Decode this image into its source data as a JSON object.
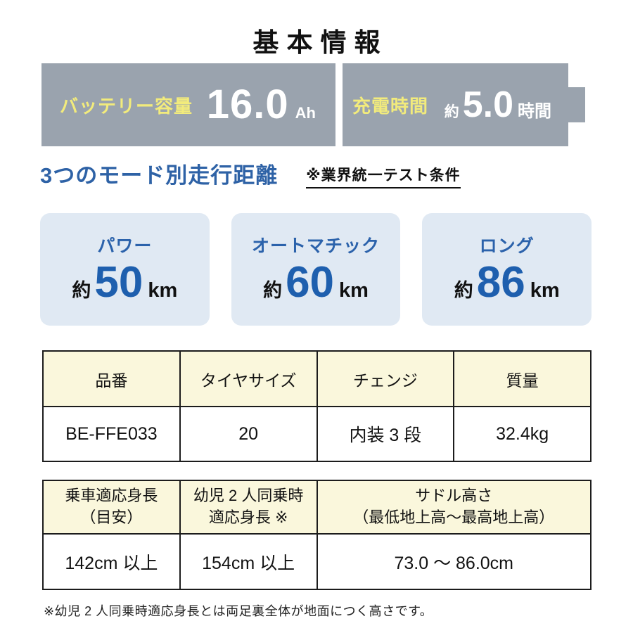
{
  "title": "基本情報",
  "banners": {
    "battery": {
      "label": "バッテリー容量",
      "value": "16.0",
      "unit": "Ah"
    },
    "charge": {
      "label": "充電時間",
      "approx": "約",
      "value": "5.0",
      "unit": "時間"
    }
  },
  "modes": {
    "heading": "3つのモード別走行距離",
    "note": "※業界統一テスト条件",
    "items": [
      {
        "label": "パワー",
        "approx": "約",
        "value": "50",
        "unit": "km"
      },
      {
        "label": "オートマチック",
        "approx": "約",
        "value": "60",
        "unit": "km"
      },
      {
        "label": "ロング",
        "approx": "約",
        "value": "86",
        "unit": "km"
      }
    ]
  },
  "spec_table": {
    "headers": [
      "品番",
      "タイヤサイズ",
      "チェンジ",
      "質量"
    ],
    "values": [
      "BE-FFE033",
      "20",
      "内装 3 段",
      "32.4kg"
    ]
  },
  "height_table": {
    "headers": [
      [
        "乗車適応身長",
        "（目安）"
      ],
      [
        "幼児 2 人同乗時",
        "適応身長 ※"
      ],
      [
        "サドル高さ",
        "（最低地上高～最高地上高）"
      ]
    ],
    "values": [
      "142cm 以上",
      "154cm 以上",
      "73.0 ～ 86.0cm"
    ]
  },
  "footnote": "※幼児 2 人同乗時適応身長とは両足裏全体が地面につく高さです。",
  "colors": {
    "banner_gray": "#9aa3ae",
    "accent_yellow": "#f2eb7c",
    "heading_blue": "#2e62a6",
    "number_blue": "#1e5fae",
    "mode_box_bg": "#e0e9f3",
    "table_header_bg": "#faf7dc"
  }
}
